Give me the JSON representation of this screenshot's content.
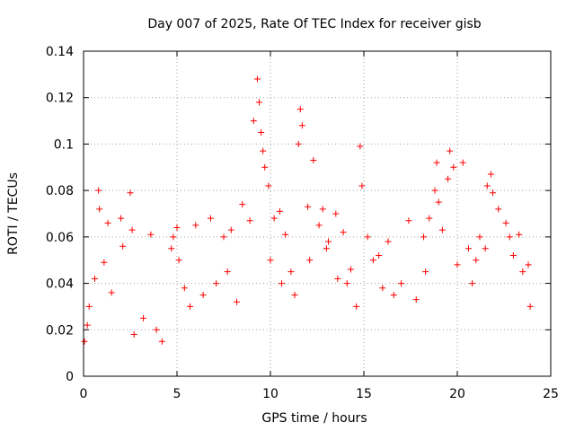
{
  "chart_data": {
    "type": "scatter",
    "title": "Day 007 of 2025, Rate Of TEC Index for receiver gisb",
    "xlabel": "GPS time / hours",
    "ylabel": "ROTI / TECUs",
    "xlim": [
      0,
      25
    ],
    "ylim": [
      0,
      0.14
    ],
    "xticks": [
      0,
      5,
      10,
      15,
      20,
      25
    ],
    "xtick_labels": [
      "0",
      "5",
      "10",
      "15",
      "20",
      "25"
    ],
    "yticks": [
      0,
      0.02,
      0.04,
      0.06,
      0.08,
      0.1,
      0.12,
      0.14
    ],
    "ytick_labels": [
      "0",
      "0.02",
      "0.04",
      "0.06",
      "0.08",
      "0.1",
      "0.12",
      "0.14"
    ],
    "grid": true,
    "marker": "+",
    "marker_color": "#ff0000",
    "series": [
      {
        "name": "ROTI",
        "x": [
          0.8,
          0.85,
          1.1,
          1.3,
          2.0,
          2.1,
          2.5,
          2.6,
          3.6,
          4.7,
          4.8,
          5.0,
          5.1,
          6.0,
          6.8,
          7.5,
          7.9,
          8.5,
          8.9,
          9.1,
          9.3,
          9.4,
          9.5,
          9.6,
          9.7,
          9.9,
          10.2,
          10.5,
          10.8,
          11.5,
          11.6,
          11.7,
          12.0,
          12.3,
          12.6,
          12.8,
          13.1,
          13.5,
          13.9,
          14.3,
          14.8,
          14.9,
          15.2,
          15.8,
          16.3,
          17.4,
          18.2,
          18.5,
          18.8,
          18.9,
          19.0,
          19.2,
          19.5,
          19.6,
          19.8,
          20.3,
          20.6,
          21.2,
          21.6,
          21.8,
          21.9,
          22.2,
          22.6,
          23.0,
          23.3,
          23.8,
          0.05,
          0.2,
          0.3,
          0.6,
          1.5,
          2.7,
          3.2,
          3.9,
          4.2,
          5.4,
          5.7,
          6.4,
          7.1,
          7.7,
          8.2,
          10.0,
          10.6,
          11.1,
          11.3,
          12.1,
          13.0,
          13.6,
          14.1,
          14.6,
          15.5,
          16.0,
          16.6,
          17.0,
          17.8,
          18.3,
          20.0,
          20.8,
          21.0,
          21.5,
          22.8,
          23.5,
          23.9
        ],
        "y": [
          0.08,
          0.072,
          0.049,
          0.066,
          0.068,
          0.056,
          0.079,
          0.063,
          0.061,
          0.055,
          0.06,
          0.064,
          0.05,
          0.065,
          0.068,
          0.06,
          0.063,
          0.074,
          0.067,
          0.11,
          0.128,
          0.118,
          0.105,
          0.097,
          0.09,
          0.082,
          0.068,
          0.071,
          0.061,
          0.1,
          0.115,
          0.108,
          0.073,
          0.093,
          0.065,
          0.072,
          0.058,
          0.07,
          0.062,
          0.046,
          0.099,
          0.082,
          0.06,
          0.052,
          0.058,
          0.067,
          0.06,
          0.068,
          0.08,
          0.092,
          0.075,
          0.063,
          0.085,
          0.097,
          0.09,
          0.092,
          0.055,
          0.06,
          0.082,
          0.087,
          0.079,
          0.072,
          0.066,
          0.052,
          0.061,
          0.048,
          0.015,
          0.022,
          0.03,
          0.042,
          0.036,
          0.018,
          0.025,
          0.02,
          0.015,
          0.038,
          0.03,
          0.035,
          0.04,
          0.045,
          0.032,
          0.05,
          0.04,
          0.045,
          0.035,
          0.05,
          0.055,
          0.042,
          0.04,
          0.03,
          0.05,
          0.038,
          0.035,
          0.04,
          0.033,
          0.045,
          0.048,
          0.04,
          0.05,
          0.055,
          0.06,
          0.045,
          0.03
        ]
      }
    ]
  }
}
